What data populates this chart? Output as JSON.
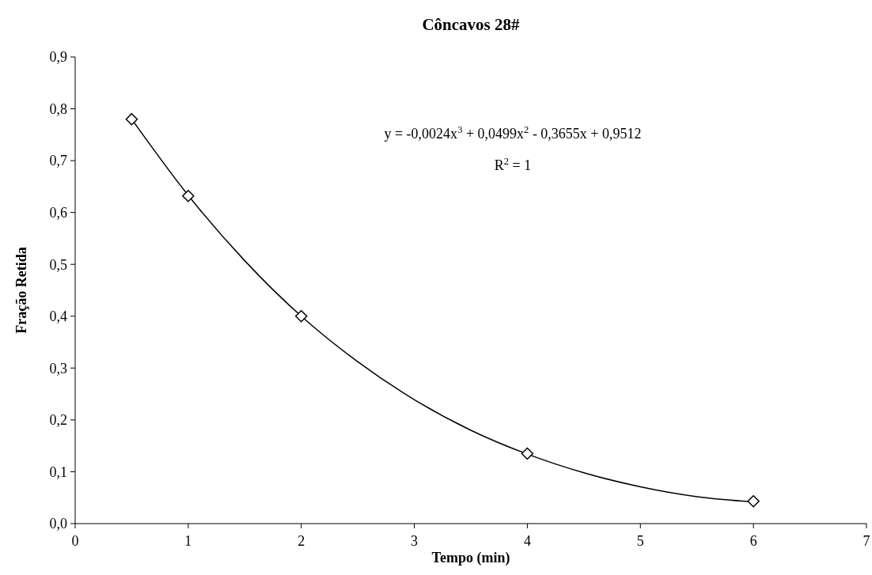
{
  "chart_data": {
    "type": "scatter",
    "title": "Côncavos 28#",
    "xlabel": "Tempo (min)",
    "ylabel": "Fração Retida",
    "annotations": [
      "y = -0,0024x$^{3}$ + 0,0499x$^{2}$ - 0,3655x + 0,9512",
      "R$^{2}$ = 1"
    ],
    "series": [
      {
        "type": "line",
        "color": "#000000",
        "marker": "none",
        "line_style": "solid",
        "x": [
          0.5,
          1,
          1.5,
          2,
          2.5,
          3,
          3.5,
          4,
          4.5,
          5,
          5.5,
          6
        ],
        "values": [
          0.78,
          0.633,
          0.507,
          0.4,
          0.312,
          0.239,
          0.18,
          0.134,
          0.098,
          0.071,
          0.052,
          0.042
        ]
      },
      {
        "color": "#000000",
        "marker": "diamond",
        "x": [
          0.5,
          1,
          2,
          4,
          6
        ],
        "values": [
          0.78,
          0.632,
          0.4,
          0.135,
          0.043
        ]
      }
    ],
    "xlim": [
      0,
      7
    ],
    "xticks": [
      0,
      1,
      2,
      3,
      4,
      5,
      6,
      7
    ],
    "ylim": [
      0,
      0.9
    ],
    "yticks": [
      {
        "value": 0,
        "label": "0,0"
      },
      {
        "value": 0.1,
        "label": "0,1"
      },
      {
        "value": 0.2,
        "label": "0,2"
      },
      {
        "value": 0.3,
        "label": "0,3"
      },
      {
        "value": 0.4,
        "label": "0,4"
      },
      {
        "value": 0.5,
        "label": "0,5"
      },
      {
        "value": 0.6,
        "label": "0,6"
      },
      {
        "value": 0.7,
        "label": "0,7"
      },
      {
        "value": 0.8,
        "label": "0,8"
      },
      {
        "value": 0.9,
        "label": "0,9"
      }
    ],
    "grid": false
  }
}
